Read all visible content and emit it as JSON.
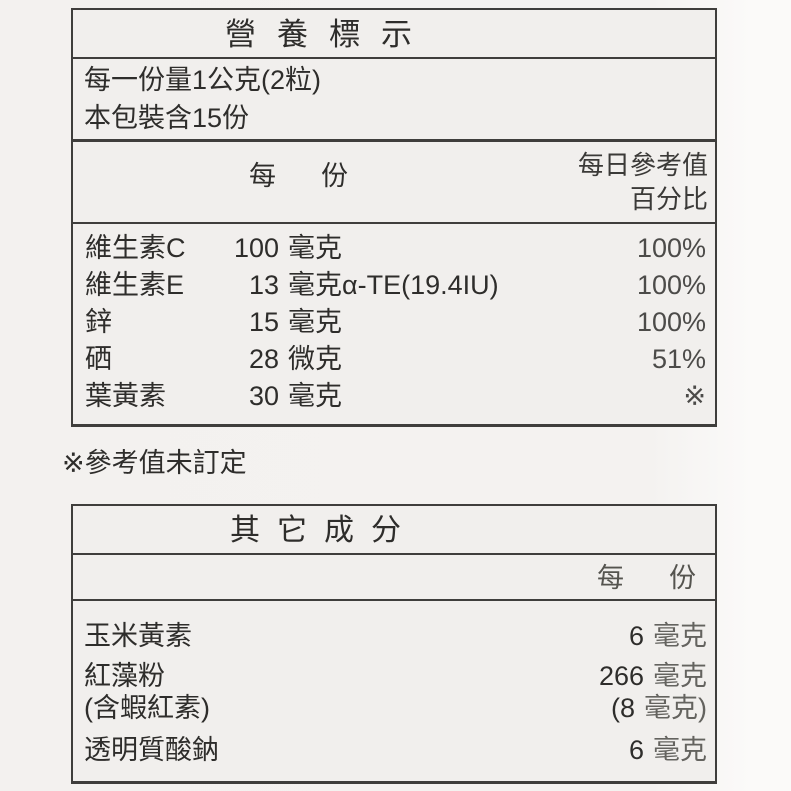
{
  "colors": {
    "paper": "#f6f4f2",
    "table_bg": "#f1efed",
    "line": "#3f3e3c",
    "ink": "#2e2d2b",
    "muted": "#64635f"
  },
  "nutrition_table": {
    "title": "營養標示",
    "serving_size_line": "每一份量1公克(2粒)",
    "servings_per_package_line": "本包裝含15份",
    "col_per_serving": "每　份",
    "col_daily_value_line1": "每日參考值",
    "col_daily_value_line2": "百分比",
    "rows": [
      {
        "name": "維生素C",
        "value": "100",
        "unit": "毫克",
        "dv": "100%"
      },
      {
        "name": "維生素E",
        "value": "13",
        "unit": "毫克α-TE(19.4IU)",
        "dv": "100%"
      },
      {
        "name": "鋅",
        "value": "15",
        "unit": "毫克",
        "dv": "100%"
      },
      {
        "name": "硒",
        "value": "28",
        "unit": "微克",
        "dv": "51%"
      },
      {
        "name": "葉黃素",
        "value": "30",
        "unit": "毫克",
        "dv": "※"
      }
    ]
  },
  "footnote": "※參考值未訂定",
  "other_ingredients_table": {
    "title": "其它成分",
    "col_per_serving": "每　份",
    "rows": [
      {
        "name": "玉米黃素",
        "value": "6",
        "unit": "毫克"
      },
      {
        "name": "紅藻粉",
        "value": "266",
        "unit": "毫克"
      },
      {
        "name": "(含蝦紅素)",
        "value": "(8",
        "unit": "毫克)"
      },
      {
        "name": "透明質酸鈉",
        "value": "6",
        "unit": "毫克"
      }
    ]
  }
}
